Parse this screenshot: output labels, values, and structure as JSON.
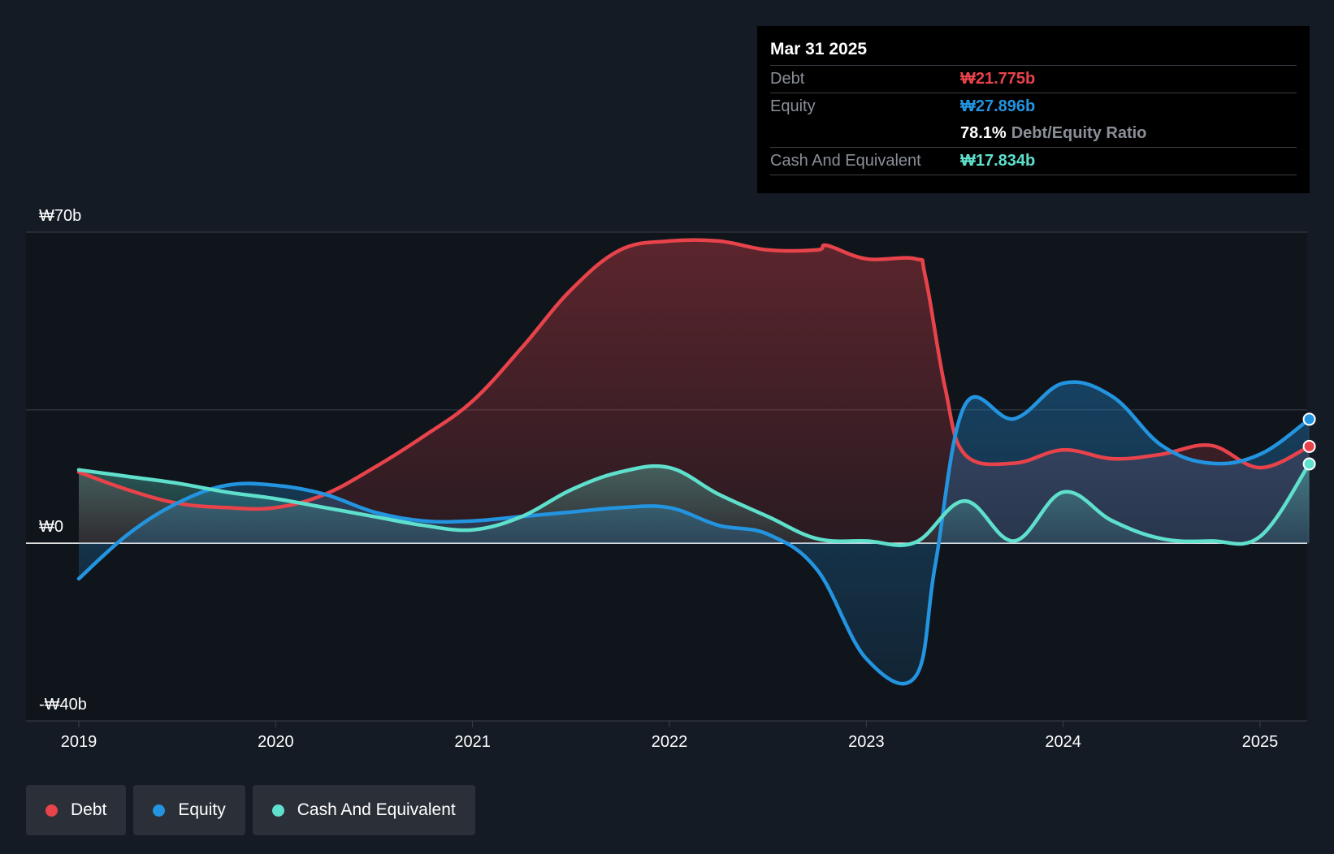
{
  "tooltip": {
    "date": "Mar 31 2025",
    "debt_label": "Debt",
    "debt_value": "₩21.775b",
    "equity_label": "Equity",
    "equity_value": "₩27.896b",
    "ratio_value": "78.1%",
    "ratio_label": "Debt/Equity Ratio",
    "cash_label": "Cash And Equivalent",
    "cash_value": "₩17.834b"
  },
  "legend": {
    "debt": "Debt",
    "equity": "Equity",
    "cash": "Cash And Equivalent"
  },
  "colors": {
    "debt": "#e8434b",
    "equity": "#2394e0",
    "cash": "#5fe0cc",
    "background": "#151b24"
  },
  "chart_data": {
    "type": "area",
    "title": "",
    "xlabel": "",
    "ylabel": "",
    "ylim": [
      -40,
      70
    ],
    "y_tick_labels": [
      {
        "value": 70,
        "label": "₩70b"
      },
      {
        "value": 0,
        "label": "₩0"
      },
      {
        "value": -40,
        "label": "-₩40b"
      }
    ],
    "x_ticks": [
      2019,
      2020,
      2021,
      2022,
      2023,
      2024,
      2025
    ],
    "x_tick_labels": [
      "2019",
      "2020",
      "2021",
      "2022",
      "2023",
      "2024",
      "2025"
    ],
    "x_range": [
      2018.75,
      2025.25
    ],
    "series": [
      {
        "name": "Debt",
        "key": "debt",
        "x": [
          2019.0,
          2019.25,
          2019.5,
          2019.75,
          2020.0,
          2020.25,
          2020.5,
          2020.75,
          2021.0,
          2021.25,
          2021.5,
          2021.75,
          2022.0,
          2022.25,
          2022.5,
          2022.75,
          2022.8,
          2023.0,
          2023.25,
          2023.3,
          2023.4,
          2023.5,
          2023.75,
          2024.0,
          2024.25,
          2024.5,
          2024.75,
          2025.0,
          2025.25
        ],
        "values": [
          16,
          12,
          9,
          8,
          8,
          11,
          17,
          24,
          32,
          44,
          57,
          66,
          68,
          68,
          66,
          66,
          67,
          64,
          64,
          60,
          35,
          20,
          18,
          21,
          19,
          20,
          22,
          17,
          21.775
        ]
      },
      {
        "name": "Equity",
        "key": "equity",
        "x": [
          2019.0,
          2019.25,
          2019.5,
          2019.75,
          2020.0,
          2020.25,
          2020.5,
          2020.75,
          2021.0,
          2021.25,
          2021.5,
          2021.75,
          2022.0,
          2022.25,
          2022.5,
          2022.75,
          2023.0,
          2023.25,
          2023.35,
          2023.5,
          2023.75,
          2024.0,
          2024.25,
          2024.5,
          2024.75,
          2025.0,
          2025.25
        ],
        "values": [
          -8,
          2,
          9,
          13,
          13,
          11,
          7,
          5,
          5,
          6,
          7,
          8,
          8,
          4,
          2,
          -6,
          -26,
          -30,
          -5,
          31,
          28,
          36,
          33,
          22,
          18,
          20,
          27.896
        ]
      },
      {
        "name": "Cash And Equivalent",
        "key": "cash",
        "x": [
          2019.0,
          2019.25,
          2019.5,
          2019.75,
          2020.0,
          2020.25,
          2020.5,
          2020.75,
          2021.0,
          2021.25,
          2021.5,
          2021.75,
          2022.0,
          2022.25,
          2022.5,
          2022.75,
          2023.0,
          2023.25,
          2023.5,
          2023.75,
          2024.0,
          2024.25,
          2024.5,
          2024.75,
          2025.0,
          2025.25
        ],
        "values": [
          16.5,
          15,
          13.5,
          11.5,
          10,
          8,
          6,
          4,
          3,
          6,
          12,
          16,
          17,
          11,
          6,
          1,
          0.5,
          0.2,
          9.5,
          0.5,
          11.5,
          5,
          1,
          0.5,
          1.5,
          17.834
        ]
      }
    ]
  }
}
